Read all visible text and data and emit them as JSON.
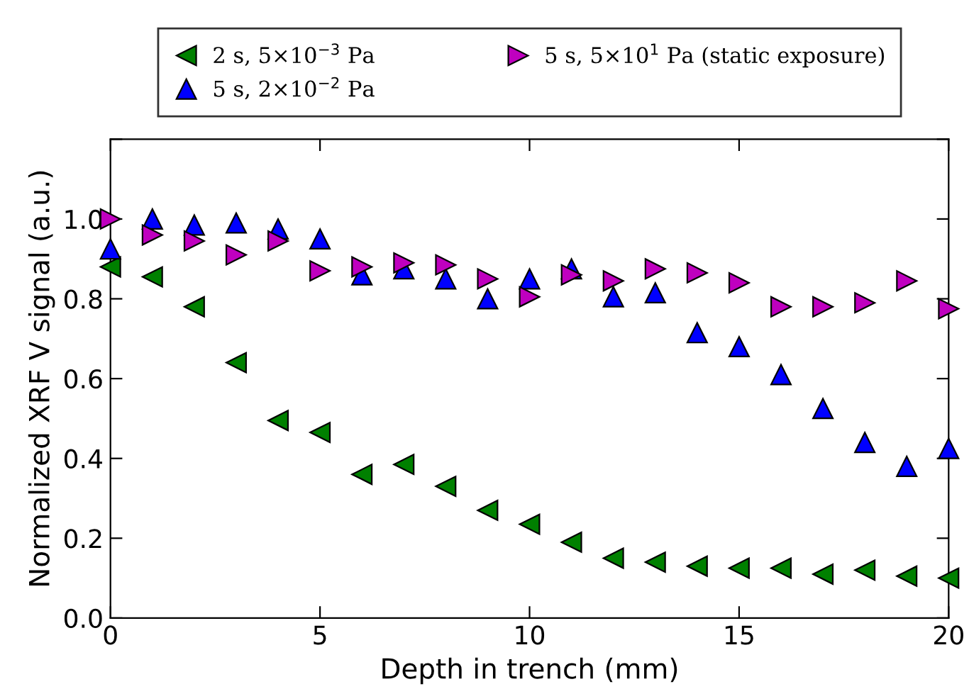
{
  "chart_data": {
    "type": "scatter",
    "xlabel": "Depth in trench (mm)",
    "ylabel": "Normalized XRF V signal (a.u.)",
    "x": [
      0,
      1,
      2,
      3,
      4,
      5,
      6,
      7,
      8,
      9,
      10,
      11,
      12,
      13,
      14,
      15,
      16,
      17,
      18,
      19,
      20
    ],
    "series": [
      {
        "name": "2 s, 5×10$^{−3}$ Pa",
        "color": "#008000",
        "marker": "triangle_left",
        "values": [
          0.88,
          0.855,
          0.78,
          0.64,
          0.495,
          0.465,
          0.36,
          0.385,
          0.33,
          0.27,
          0.235,
          0.19,
          0.15,
          0.14,
          0.13,
          0.125,
          0.125,
          0.11,
          0.12,
          0.105,
          0.1
        ]
      },
      {
        "name": "5 s, 2×10$^{−2}$ Pa",
        "color": "#0000ff",
        "marker": "triangle",
        "values": [
          0.925,
          1.0,
          0.985,
          0.99,
          0.975,
          0.95,
          0.86,
          0.875,
          0.85,
          0.8,
          0.85,
          0.875,
          0.805,
          0.815,
          0.715,
          0.68,
          0.61,
          0.525,
          0.44,
          0.38,
          0.425
        ]
      },
      {
        "name": "5 s, 5×10$^{1}$ Pa (static exposure)",
        "color": "#bf00bf",
        "marker": "triangle_right",
        "values": [
          1.0,
          0.96,
          0.945,
          0.91,
          0.945,
          0.87,
          0.88,
          0.89,
          0.885,
          0.85,
          0.805,
          0.86,
          0.845,
          0.875,
          0.865,
          0.84,
          0.78,
          0.78,
          0.79,
          0.845,
          0.775
        ]
      }
    ],
    "xlim": [
      0,
      20
    ],
    "xticks": [
      0,
      5,
      10,
      15,
      20
    ],
    "ylim": [
      0,
      1.2
    ],
    "yticks": [
      {
        "value": 0,
        "label": "0.0"
      },
      {
        "value": 0.2,
        "label": "0.2"
      },
      {
        "value": 0.4,
        "label": "0.4"
      },
      {
        "value": 0.6,
        "label": "0.6"
      },
      {
        "value": 0.8,
        "label": "0.8"
      },
      {
        "value": 1.0,
        "label": "1.0"
      },
      {
        "value": 1.2,
        "label": null
      }
    ],
    "grid": false,
    "legend": "top"
  }
}
